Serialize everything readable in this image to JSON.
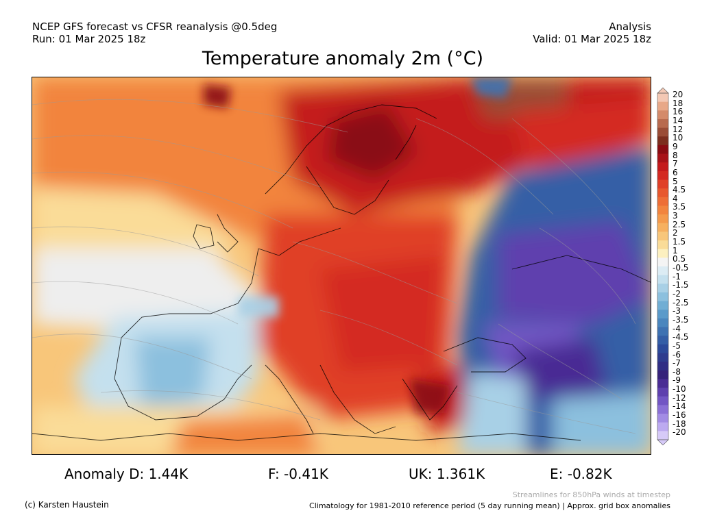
{
  "header": {
    "line1_left": "NCEP GFS forecast vs CFSR reanalysis @0.5deg",
    "line2_left": "Run: 01 Mar 2025 18z",
    "line1_right": "Analysis",
    "line2_right": "Valid: 01 Mar 2025 18z"
  },
  "title": "Temperature anomaly 2m (°C)",
  "colorbar": {
    "labels": [
      "20",
      "18",
      "16",
      "14",
      "12",
      "10",
      "9",
      "8",
      "7",
      "6",
      "5",
      "4.5",
      "4",
      "3.5",
      "3",
      "2.5",
      "2",
      "1.5",
      "1",
      "0.5",
      "-0.5",
      "-1",
      "-1.5",
      "-2",
      "-2.5",
      "-3",
      "-3.5",
      "-4",
      "-4.5",
      "-5",
      "-6",
      "-7",
      "-8",
      "-9",
      "-10",
      "-12",
      "-14",
      "-16",
      "-18",
      "-20"
    ],
    "colors": [
      "#f3c8b4",
      "#e8a888",
      "#d48a6a",
      "#b86a4e",
      "#9a4c36",
      "#7c2e1e",
      "#8a0c12",
      "#a81218",
      "#c41a1c",
      "#d42a22",
      "#e04028",
      "#e8582e",
      "#ee6e36",
      "#f2843e",
      "#f49a4c",
      "#f6b060",
      "#f8c67a",
      "#fadc98",
      "#fcf0c0",
      "#f4f4f4",
      "#dcecf4",
      "#c4e0ee",
      "#a8d0e6",
      "#8cc0de",
      "#70aed4",
      "#5a9aca",
      "#4a86be",
      "#3e72b2",
      "#345ea6",
      "#2c4a9a",
      "#2e3c8e",
      "#302e84",
      "#36227a",
      "#4a2c94",
      "#5e40ae",
      "#7256c4",
      "#8a70d6",
      "#a28ce4",
      "#bcaaf0",
      "#d6caf8"
    ]
  },
  "stats": {
    "d": "Anomaly D: 1.44K",
    "f": "F: -0.41K",
    "uk": "UK: 1.361K",
    "e": "E: -0.82K"
  },
  "footer": {
    "streamlines": "Streamlines for 850hPa winds at timestep",
    "copyright": "(c) Karsten Haustein",
    "climatology": "Climatology for 1981-2010 reference period (5 day running mean) | Approx. grid box anomalies"
  }
}
